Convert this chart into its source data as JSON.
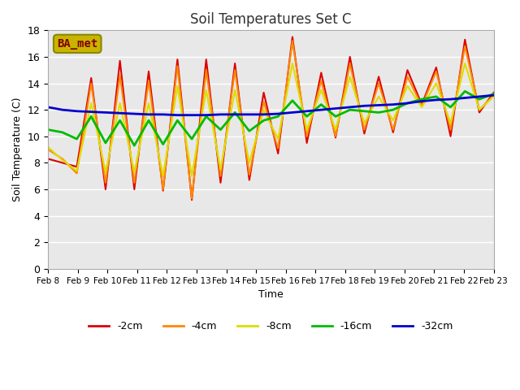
{
  "title": "Soil Temperatures Set C",
  "xlabel": "Time",
  "ylabel": "Soil Temperature (C)",
  "ylim": [
    0,
    18
  ],
  "xlim": [
    0,
    15
  ],
  "background_color": "#ffffff",
  "plot_bg_color": "#e8e8e8",
  "legend_label": "BA_met",
  "legend_box_color": "#c8b400",
  "legend_box_text_color": "#800000",
  "x_tick_labels": [
    "Feb 8",
    "Feb 9",
    "Feb 10",
    "Feb 11",
    "Feb 12",
    "Feb 13",
    "Feb 14",
    "Feb 15",
    "Feb 16",
    "Feb 17",
    "Feb 18",
    "Feb 19",
    "Feb 20",
    "Feb 21",
    "Feb 22",
    "Feb 23"
  ],
  "series": {
    "2cm": {
      "color": "#dd0000",
      "linewidth": 1.5,
      "y": [
        8.3,
        8.0,
        7.7,
        14.4,
        6.0,
        15.7,
        6.0,
        14.9,
        5.9,
        15.8,
        5.2,
        15.8,
        6.5,
        15.5,
        6.7,
        13.3,
        8.7,
        17.5,
        9.5,
        14.8,
        9.9,
        16.0,
        10.2,
        14.5,
        10.3,
        15.0,
        12.4,
        15.2,
        10.0,
        17.3,
        11.8,
        13.3
      ]
    },
    "4cm": {
      "color": "#ff8800",
      "linewidth": 1.5,
      "y": [
        9.0,
        8.3,
        7.2,
        14.0,
        6.5,
        14.6,
        6.5,
        14.2,
        6.0,
        15.3,
        5.3,
        15.0,
        7.0,
        15.0,
        7.1,
        12.6,
        9.1,
        17.2,
        10.0,
        14.2,
        10.0,
        15.5,
        10.5,
        14.0,
        10.5,
        14.5,
        12.3,
        14.9,
        10.5,
        16.8,
        12.0,
        13.1
      ]
    },
    "8cm": {
      "color": "#dddd00",
      "linewidth": 1.5,
      "y": [
        9.2,
        8.2,
        7.4,
        12.5,
        7.3,
        12.5,
        7.3,
        12.5,
        7.0,
        13.8,
        7.0,
        13.5,
        7.5,
        13.5,
        8.0,
        12.0,
        9.8,
        15.5,
        10.5,
        13.5,
        10.5,
        14.5,
        11.0,
        13.0,
        11.2,
        13.8,
        12.2,
        14.0,
        11.0,
        15.5,
        12.0,
        13.0
      ]
    },
    "16cm": {
      "color": "#00bb00",
      "linewidth": 2.0,
      "y": [
        10.5,
        10.3,
        9.8,
        11.5,
        9.5,
        11.2,
        9.3,
        11.2,
        9.4,
        11.2,
        9.8,
        11.5,
        10.5,
        11.8,
        10.4,
        11.2,
        11.5,
        12.7,
        11.5,
        12.4,
        11.5,
        12.0,
        11.9,
        11.8,
        12.0,
        12.5,
        12.8,
        13.0,
        12.2,
        13.4,
        12.8,
        13.2
      ]
    },
    "32cm": {
      "color": "#0000cc",
      "linewidth": 2.0,
      "y": [
        12.2,
        12.0,
        11.9,
        11.85,
        11.8,
        11.75,
        11.7,
        11.65,
        11.65,
        11.6,
        11.6,
        11.6,
        11.65,
        11.65,
        11.65,
        11.65,
        11.7,
        11.8,
        11.9,
        12.0,
        12.1,
        12.2,
        12.3,
        12.35,
        12.4,
        12.5,
        12.65,
        12.75,
        12.8,
        12.9,
        13.0,
        13.1
      ]
    }
  }
}
